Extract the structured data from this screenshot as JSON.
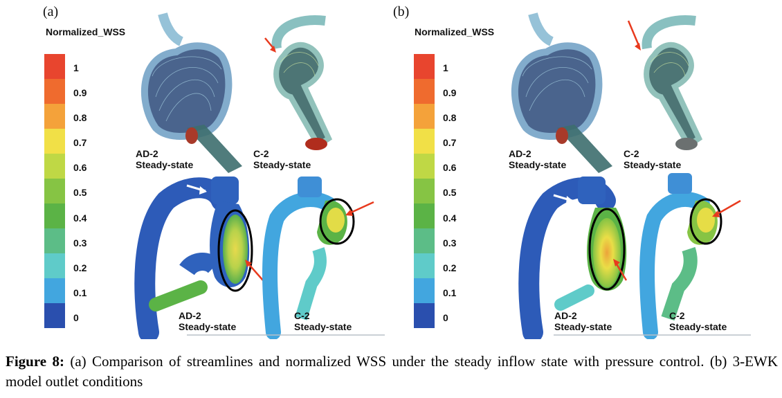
{
  "figure": {
    "panels": [
      {
        "label": "(a)",
        "colorbar": {
          "title": "Normalized_WSS",
          "ticks": [
            "1",
            "0.9",
            "0.8",
            "0.7",
            "0.6",
            "0.5",
            "0.4",
            "0.3",
            "0.2",
            "0.1",
            "0"
          ],
          "colors": [
            "#e8452e",
            "#ef6b2e",
            "#f4a23a",
            "#f1e047",
            "#bfd845",
            "#86c444",
            "#5bb346",
            "#5cbd87",
            "#5fcbc9",
            "#42a6df",
            "#2f73c8",
            "#2a4fae"
          ]
        },
        "labels": {
          "streamline_left": [
            "AD-2",
            "Steady-state"
          ],
          "streamline_right": [
            "C-2",
            "Steady-state"
          ],
          "wss_left": [
            "AD-2",
            "Steady-state"
          ],
          "wss_right": [
            "C-2",
            "Steady-state"
          ]
        }
      },
      {
        "label": "(b)",
        "colorbar": {
          "title": "Normalized_WSS",
          "ticks": [
            "1",
            "0.9",
            "0.8",
            "0.7",
            "0.6",
            "0.5",
            "0.4",
            "0.3",
            "0.2",
            "0.1",
            "0"
          ],
          "colors": [
            "#e8452e",
            "#ef6b2e",
            "#f4a23a",
            "#f1e047",
            "#bfd845",
            "#86c444",
            "#5bb346",
            "#5cbd87",
            "#5fcbc9",
            "#42a6df",
            "#2f73c8",
            "#2a4fae"
          ]
        },
        "labels": {
          "streamline_left": [
            "AD-2",
            "Steady-state"
          ],
          "streamline_right": [
            "C-2",
            "Steady-state"
          ],
          "wss_left": [
            "AD-2",
            "Steady-state"
          ],
          "wss_right": [
            "C-2",
            "Steady-state"
          ]
        }
      }
    ],
    "caption": {
      "bold": "Figure 8:",
      "text": " (a) Comparison of streamlines and normalized WSS under the steady inflow state with pressure control. (b) 3-EWK model outlet conditions"
    }
  }
}
